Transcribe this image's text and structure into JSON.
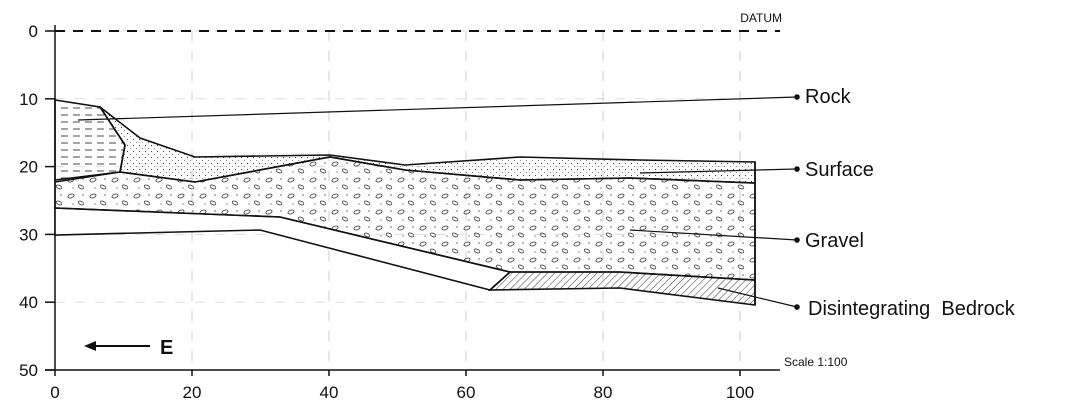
{
  "axes": {
    "x_ticks": [
      0,
      20,
      40,
      60,
      80,
      100
    ],
    "y_ticks": [
      0,
      10,
      20,
      30,
      40,
      50
    ]
  },
  "labels": {
    "datum": "DATUM",
    "scale": "Scale 1:100",
    "direction": "E"
  },
  "layers": [
    {
      "label": "Rock"
    },
    {
      "label": "Surface"
    },
    {
      "label": "Gravel"
    },
    {
      "label": "Disintegrating  Bedrock"
    }
  ]
}
